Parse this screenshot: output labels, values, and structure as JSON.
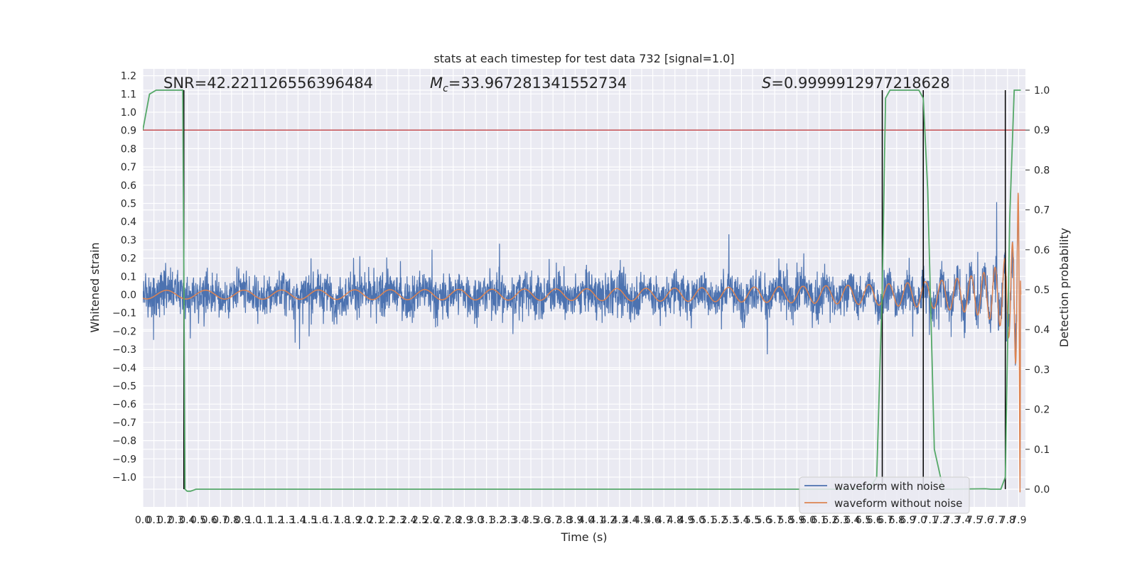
{
  "chart_data": {
    "type": "line",
    "title": "stats at each timestep for test data 732 [signal=1.0]",
    "xlabel": "Time (s)",
    "ylabel_left": "Whitened strain",
    "ylabel_right": "Detection probability",
    "annotations": {
      "snr": "SNR=42.221126556396484",
      "mc_symbol": "M",
      "mc_sub": "c",
      "mc_value": "=33.967281341552734",
      "s_symbol": "S",
      "s_value": "=0.9999912977218628"
    },
    "xlim": [
      0.0,
      7.95
    ],
    "ylim_left": [
      -1.16,
      1.24
    ],
    "ylim_right": [
      -0.05,
      1.05
    ],
    "x_ticks": [
      "0.0",
      "0.1",
      "0.2",
      "0.3",
      "0.4",
      "0.5",
      "0.6",
      "0.7",
      "0.8",
      "0.9",
      "1.0",
      "1.1",
      "1.2",
      "1.3",
      "1.4",
      "1.5",
      "1.6",
      "1.7",
      "1.8",
      "1.9",
      "2.0",
      "2.1",
      "2.2",
      "2.3",
      "2.4",
      "2.5",
      "2.6",
      "2.7",
      "2.8",
      "2.9",
      "3.0",
      "3.1",
      "3.2",
      "3.3",
      "3.4",
      "3.5",
      "3.6",
      "3.7",
      "3.8",
      "3.9",
      "4.0",
      "4.1",
      "4.2",
      "4.3",
      "4.4",
      "4.5",
      "4.6",
      "4.7",
      "4.8",
      "4.9",
      "5.0",
      "5.1",
      "5.2",
      "5.3",
      "5.4",
      "5.5",
      "5.6",
      "5.7",
      "5.8",
      "5.9",
      "6.0",
      "6.1",
      "6.2",
      "6.3",
      "6.4",
      "6.5",
      "6.6",
      "6.7",
      "6.8",
      "6.9",
      "7.0",
      "7.1",
      "7.2",
      "7.3",
      "7.4",
      "7.5",
      "7.6",
      "7.7",
      "7.8",
      "7.9"
    ],
    "y_left_ticks": [
      "1.2",
      "1.1",
      "1.0",
      "0.9",
      "0.8",
      "0.7",
      "0.6",
      "0.5",
      "0.4",
      "0.3",
      "0.2",
      "0.1",
      "0.0",
      "−0.1",
      "−0.2",
      "−0.3",
      "−0.4",
      "−0.5",
      "−0.6",
      "−0.7",
      "−0.8",
      "−0.9",
      "−1.0"
    ],
    "y_right_ticks": [
      "1.0",
      "0.9",
      "0.8",
      "0.7",
      "0.6",
      "0.5",
      "0.4",
      "0.3",
      "0.2",
      "0.1",
      "0.0"
    ],
    "threshold": 0.9,
    "detection_lines": [
      0.37,
      6.67,
      7.04,
      7.78
    ],
    "probability": {
      "x": [
        0.0,
        0.06,
        0.12,
        0.18,
        0.24,
        0.3,
        0.36,
        0.37,
        0.38,
        0.4,
        0.43,
        0.48,
        0.55,
        6.4,
        6.55,
        6.62,
        6.67,
        6.7,
        6.74,
        7.0,
        7.04,
        7.08,
        7.14,
        7.22,
        7.3,
        7.6,
        7.65,
        7.74,
        7.78,
        7.82,
        7.86,
        7.92
      ],
      "y": [
        0.9,
        0.99,
        1.0,
        1.0,
        1.0,
        1.0,
        1.0,
        0.55,
        0.0,
        -0.005,
        -0.005,
        0.0,
        0.0,
        0.0,
        0.0,
        0.03,
        0.5,
        0.98,
        1.0,
        1.0,
        0.98,
        0.75,
        0.1,
        0.0,
        0.0,
        0.001,
        0.0,
        0.0,
        0.03,
        0.68,
        1.0,
        1.0
      ]
    },
    "colors": {
      "noise": "#4c72b0",
      "clean": "#dd8452",
      "probability": "#55a868",
      "threshold": "#c44e52",
      "detection": "#000000",
      "background": "#eaeaf2",
      "grid": "#ffffff"
    },
    "grid": true,
    "legend": {
      "position": "lower-right",
      "entries": [
        "waveform with noise",
        "waveform without noise"
      ]
    }
  }
}
